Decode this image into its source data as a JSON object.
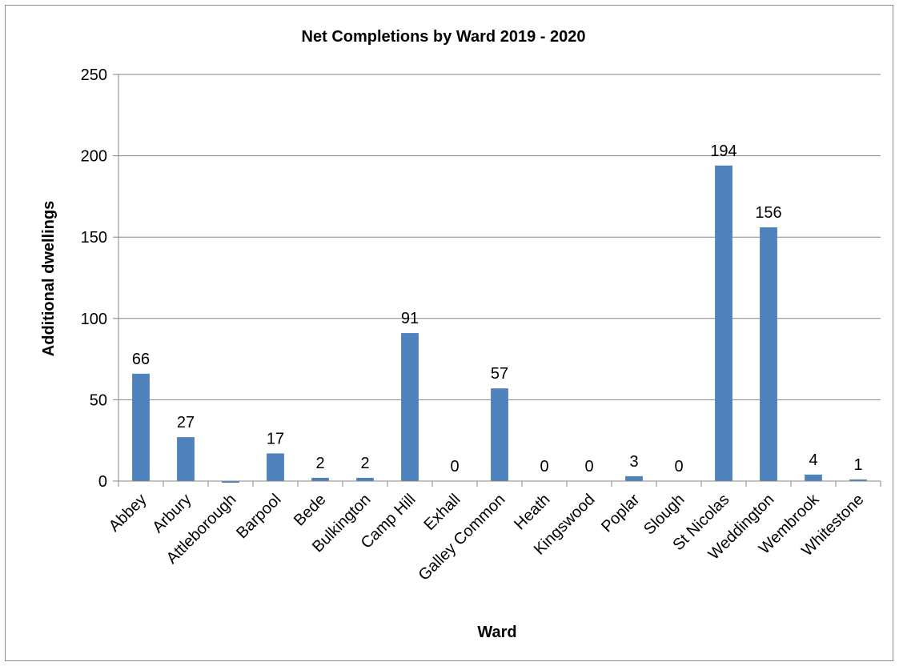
{
  "chart_data": {
    "type": "bar",
    "title": "Net Completions by Ward 2019 - 2020",
    "xlabel": "Ward",
    "ylabel": "Additional dwellings",
    "ylim": [
      0,
      250
    ],
    "yticks": [
      0,
      50,
      100,
      150,
      200,
      250
    ],
    "grid": true,
    "legend": "none",
    "bar_color": "#4f81bd",
    "categories": [
      "Abbey",
      "Arbury",
      "Attleborough",
      "Barpool",
      "Bede",
      "Bulkington",
      "Camp Hill",
      "Exhall",
      "Galley Common",
      "Heath",
      "Kingswood",
      "Poplar",
      "Slough",
      "St Nicolas",
      "Weddington",
      "Wembrook",
      "Whitestone"
    ],
    "values": [
      66,
      27,
      -1,
      17,
      2,
      2,
      91,
      0,
      57,
      0,
      0,
      3,
      0,
      194,
      156,
      4,
      1
    ],
    "data_labels": [
      "66",
      "27",
      "",
      "17",
      "2",
      "2",
      "91",
      "0",
      "57",
      "0",
      "0",
      "3",
      "0",
      "194",
      "156",
      "4",
      "1"
    ]
  }
}
